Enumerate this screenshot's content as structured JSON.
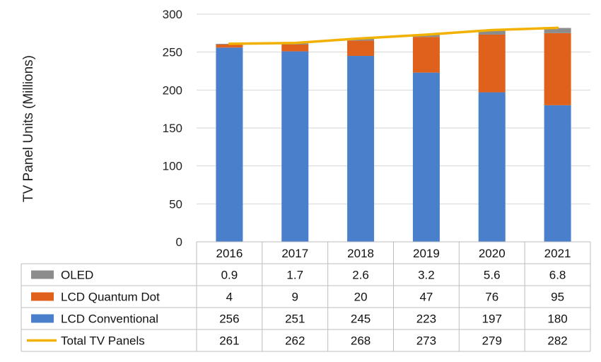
{
  "chart_data": {
    "type": "bar",
    "stacked": true,
    "categories": [
      "2016",
      "2017",
      "2018",
      "2019",
      "2020",
      "2021"
    ],
    "series": [
      {
        "name": "OLED",
        "kind": "bar",
        "color": "#8c8c8c",
        "values": [
          0.9,
          1.7,
          2.6,
          3.2,
          5.6,
          6.8
        ],
        "labels": [
          "0.9",
          "1.7",
          "2.6",
          "3.2",
          "5.6",
          "6.8"
        ]
      },
      {
        "name": "LCD Quantum Dot",
        "kind": "bar",
        "color": "#e0611b",
        "values": [
          4,
          9,
          20,
          47,
          76,
          95
        ],
        "labels": [
          "4",
          "9",
          "20",
          "47",
          "76",
          "95"
        ]
      },
      {
        "name": "LCD Conventional",
        "kind": "bar",
        "color": "#4a7fcc",
        "values": [
          256,
          251,
          245,
          223,
          197,
          180
        ],
        "labels": [
          "256",
          "251",
          "245",
          "223",
          "197",
          "180"
        ]
      },
      {
        "name": "Total TV Panels",
        "kind": "line",
        "color": "#f2b100",
        "values": [
          261,
          262,
          268,
          273,
          279,
          282
        ],
        "labels": [
          "261",
          "262",
          "268",
          "273",
          "279",
          "282"
        ]
      }
    ],
    "stack_order": [
      "LCD Conventional",
      "LCD Quantum Dot",
      "OLED"
    ],
    "ylabel": "TV Panel Units (Millions)",
    "xlabel": "",
    "ylim": [
      0,
      300
    ],
    "yticks": [
      "0",
      "50",
      "100",
      "150",
      "200",
      "250",
      "300"
    ],
    "grid": true,
    "legend": "data-table"
  }
}
